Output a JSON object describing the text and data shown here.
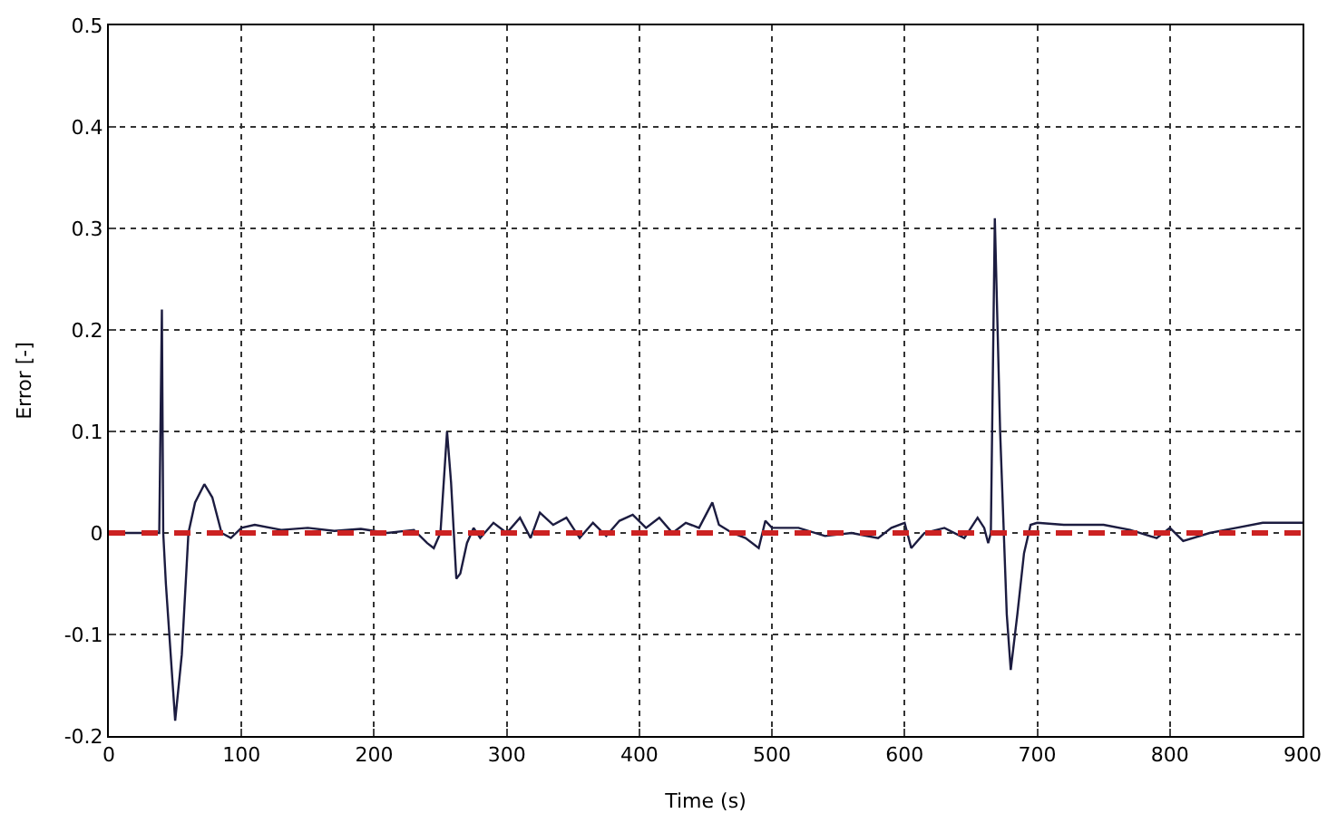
{
  "chart_data": {
    "type": "line",
    "xlabel": "Time (s)",
    "ylabel": "Error [-]",
    "x": [
      0,
      38,
      40,
      41,
      43,
      50,
      55,
      60,
      65,
      72,
      78,
      85,
      92,
      100,
      110,
      130,
      150,
      170,
      190,
      210,
      230,
      240,
      245,
      250,
      255,
      258,
      262,
      265,
      270,
      275,
      280,
      290,
      300,
      310,
      318,
      325,
      335,
      345,
      355,
      365,
      375,
      385,
      395,
      405,
      415,
      425,
      435,
      445,
      455,
      460,
      470,
      480,
      490,
      495,
      500,
      520,
      540,
      560,
      580,
      590,
      600,
      605,
      615,
      630,
      645,
      655,
      660,
      663,
      665,
      668,
      672,
      677,
      680,
      685,
      690,
      695,
      700,
      720,
      750,
      770,
      790,
      800,
      810,
      830,
      850,
      870,
      900
    ],
    "series": [
      {
        "color": "#1c1c40",
        "values": [
          0,
          0,
          0.22,
          0.0,
          -0.05,
          -0.185,
          -0.12,
          0.0,
          0.03,
          0.048,
          0.035,
          0.0,
          -0.005,
          0.005,
          0.008,
          0.003,
          0.005,
          0.002,
          0.004,
          0.0,
          0.003,
          -0.01,
          -0.015,
          0.0,
          0.1,
          0.05,
          -0.045,
          -0.04,
          -0.01,
          0.005,
          -0.005,
          0.01,
          0.0,
          0.015,
          -0.005,
          0.02,
          0.008,
          0.015,
          -0.005,
          0.01,
          -0.003,
          0.012,
          0.018,
          0.005,
          0.015,
          0.0,
          0.01,
          0.005,
          0.03,
          0.008,
          0.0,
          -0.005,
          -0.015,
          0.012,
          0.005,
          0.005,
          -0.003,
          0.0,
          -0.005,
          0.005,
          0.01,
          -0.015,
          0.0,
          0.005,
          -0.005,
          0.015,
          0.005,
          -0.01,
          0.0,
          0.31,
          0.1,
          -0.08,
          -0.135,
          -0.08,
          -0.02,
          0.008,
          0.01,
          0.008,
          0.008,
          0.003,
          -0.005,
          0.005,
          -0.008,
          0.0,
          0.005,
          0.01,
          0.01
        ]
      }
    ],
    "ref_lines": [
      {
        "axis": "y",
        "value": 0,
        "color": "#cc2222",
        "line_style": "dashed"
      }
    ],
    "xlim": [
      0,
      900
    ],
    "xticks": [
      0,
      100,
      200,
      300,
      400,
      500,
      600,
      700,
      800,
      900
    ],
    "ylim": [
      -0.2,
      0.5
    ],
    "yticks": [
      -0.2,
      -0.1,
      0,
      0.1,
      0.2,
      0.3,
      0.4,
      0.5
    ],
    "grid": true,
    "line_style": "solid",
    "marker": "none"
  }
}
